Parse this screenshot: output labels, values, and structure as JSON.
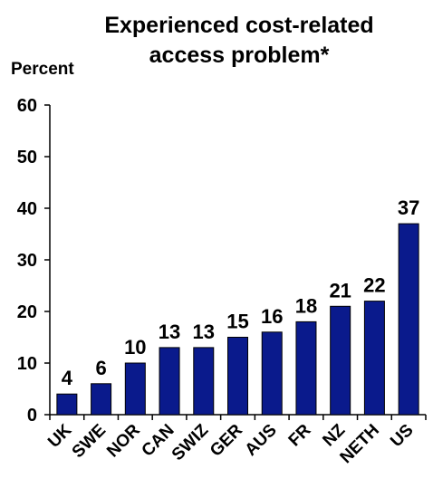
{
  "chart_data": {
    "type": "bar",
    "title_lines": [
      "Experienced cost-related",
      "access problem*"
    ],
    "ylabel": "Percent",
    "ylim": [
      0,
      60
    ],
    "yticks": [
      0,
      10,
      20,
      30,
      40,
      50,
      60
    ],
    "categories": [
      "UK",
      "SWE",
      "NOR",
      "CAN",
      "SWIZ",
      "GER",
      "AUS",
      "FR",
      "NZ",
      "NETH",
      "US"
    ],
    "values": [
      4,
      6,
      10,
      13,
      13,
      15,
      16,
      18,
      21,
      22,
      37
    ],
    "bar_color": "#0a1a8c",
    "grid": false,
    "legend": "none"
  }
}
